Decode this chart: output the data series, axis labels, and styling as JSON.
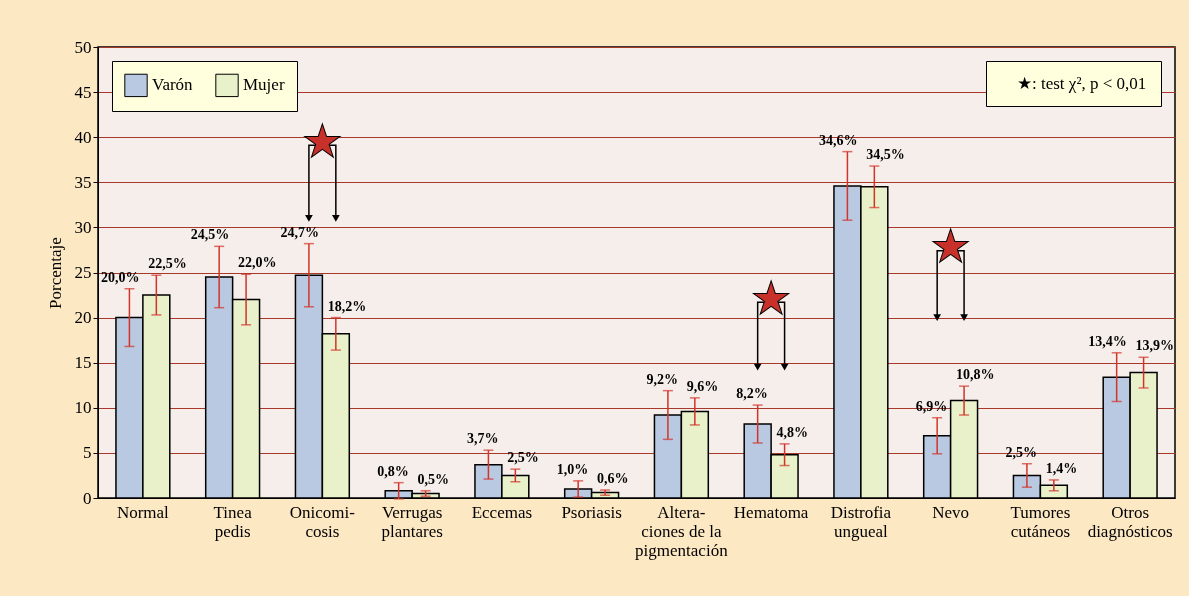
{
  "chart_data": {
    "type": "bar",
    "ylabel": "Porcentaje",
    "categories": [
      "Normal",
      "Tinea\npedis",
      "Onicomi-\ncosis",
      "Verrugas\nplantares",
      "Eccemas",
      "Psoriasis",
      "Altera-\nciones de la\npigmentación",
      "Hematoma",
      "Distrofia\nungueal",
      "Nevo",
      "Tumores\ncutáneos",
      "Otros\ndiagnósticos"
    ],
    "series": [
      {
        "name": "Varón",
        "color": "#b9c9e1",
        "values": [
          20.0,
          24.5,
          24.7,
          0.8,
          3.7,
          1.0,
          9.2,
          8.2,
          34.6,
          6.9,
          2.5,
          13.4
        ],
        "errors": [
          3.2,
          3.4,
          3.5,
          0.9,
          1.6,
          0.9,
          2.7,
          2.1,
          3.8,
          2.0,
          1.3,
          2.7
        ],
        "value_labels": [
          "20,0%",
          "24,5%",
          "24,7%",
          "0,8%",
          "3,7%",
          "1,0%",
          "9,2%",
          "8,2%",
          "34,6%",
          "6,9%",
          "2,5%",
          "13,4%"
        ]
      },
      {
        "name": "Mujer",
        "color": "#e8f1c9",
        "values": [
          22.5,
          22.0,
          18.2,
          0.5,
          2.5,
          0.6,
          9.6,
          4.8,
          34.5,
          10.8,
          1.4,
          13.9
        ],
        "errors": [
          2.2,
          2.8,
          1.8,
          0.3,
          0.7,
          0.3,
          1.5,
          1.2,
          2.3,
          1.6,
          0.6,
          1.7
        ],
        "value_labels": [
          "22,5%",
          "22,0%",
          "18,2%",
          "0,5%",
          "2,5%",
          "0,6%",
          "9,6%",
          "4,8%",
          "34,5%",
          "10,8%",
          "1,4%",
          "13,9%"
        ]
      }
    ],
    "ylim": [
      0,
      50
    ],
    "yticks": [
      0,
      5,
      10,
      15,
      20,
      25,
      30,
      35,
      40,
      45,
      50
    ],
    "grid": "y",
    "legend": "top left",
    "annotations": [
      "★",
      "★",
      "★",
      "★: test χ², p < 0,01"
    ]
  }
}
